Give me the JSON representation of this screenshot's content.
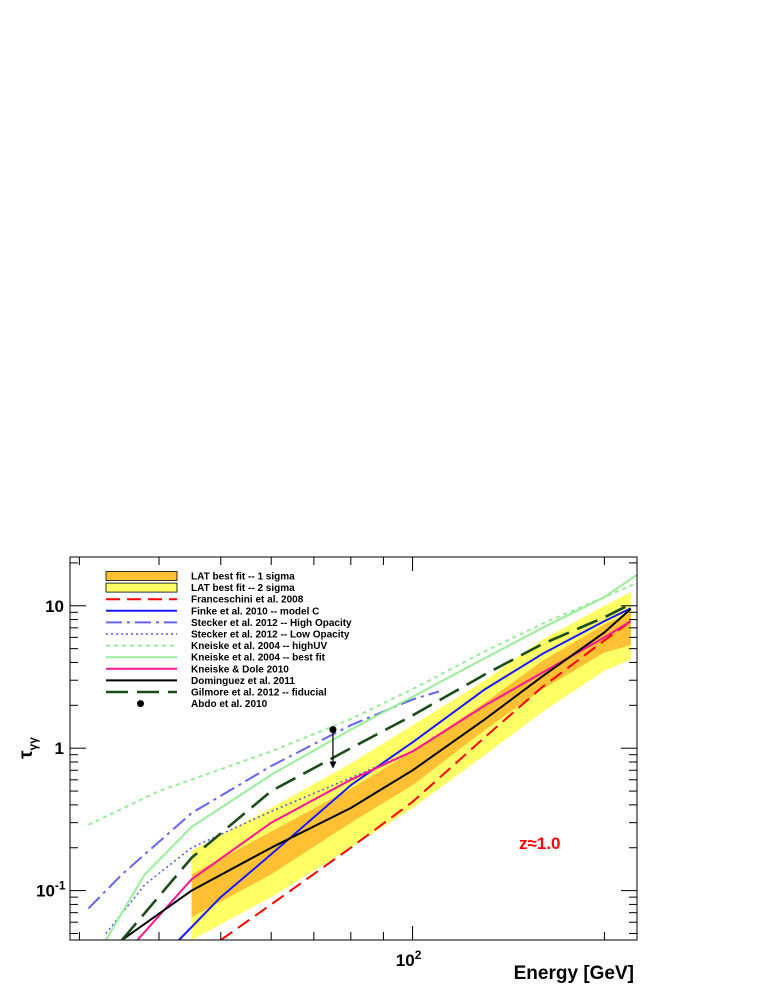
{
  "chart_data": {
    "type": "line",
    "xlabel": "Energy [GeV]",
    "ylabel": "τγγ",
    "x_scale": "log",
    "y_scale": "log",
    "xlim": [
      29,
      225
    ],
    "ylim": [
      0.045,
      22
    ],
    "x_tick_labels": [
      {
        "value": 100,
        "base": "10",
        "exp": "2"
      }
    ],
    "y_tick_labels": [
      {
        "value": 0.1,
        "label": "10",
        "exp": "-1"
      },
      {
        "value": 1,
        "label": "1",
        "exp": ""
      },
      {
        "value": 10,
        "label": "10",
        "exp": ""
      }
    ],
    "annotation": {
      "text": "z≈1.0",
      "color": "#ff0000"
    },
    "bands": [
      {
        "name": "LAT best fit -- 2 sigma",
        "color": "#ffff66",
        "x": [
          45,
          60,
          80,
          100,
          130,
          160,
          200,
          220
        ],
        "lower": [
          0.045,
          0.09,
          0.2,
          0.38,
          0.9,
          1.8,
          3.5,
          4.2
        ],
        "upper": [
          0.19,
          0.38,
          0.78,
          1.45,
          3.0,
          5.8,
          10.0,
          12.5
        ]
      },
      {
        "name": "LAT best fit -- 1 sigma",
        "color": "#ffc133",
        "x": [
          45,
          60,
          80,
          100,
          130,
          160,
          200,
          220
        ],
        "lower": [
          0.065,
          0.13,
          0.3,
          0.55,
          1.35,
          2.6,
          4.7,
          5.3
        ],
        "upper": [
          0.13,
          0.26,
          0.52,
          0.95,
          2.1,
          4.1,
          7.4,
          9.0
        ]
      }
    ],
    "series": [
      {
        "name": "Franceschini et al. 2008",
        "color": "#ff0000",
        "dash": "14,7",
        "width": 2,
        "x": [
          50,
          60,
          80,
          100,
          130,
          160,
          200,
          220
        ],
        "y": [
          0.045,
          0.08,
          0.2,
          0.42,
          1.2,
          2.7,
          5.7,
          7.8
        ]
      },
      {
        "name": "Finke et al. 2010 -- model C",
        "color": "#1a1aff",
        "dash": "",
        "width": 2,
        "x": [
          43,
          50,
          60,
          80,
          100,
          130,
          160,
          200,
          220
        ],
        "y": [
          0.045,
          0.09,
          0.18,
          0.55,
          1.1,
          2.6,
          4.6,
          7.8,
          9.6
        ]
      },
      {
        "name": "Stecker et al. 2012 -- High Opacity",
        "color": "#6666ee",
        "dash": "16,5,3,5",
        "width": 2,
        "x": [
          31,
          35,
          45,
          60,
          80,
          100,
          110
        ],
        "y": [
          0.075,
          0.13,
          0.35,
          0.75,
          1.45,
          2.2,
          2.5
        ]
      },
      {
        "name": "Stecker et al. 2012 -- Low Opacity",
        "color": "#5555dd",
        "dash": "2,3",
        "width": 1.5,
        "x": [
          33,
          38,
          45,
          60,
          80,
          100
        ],
        "y": [
          0.05,
          0.11,
          0.2,
          0.36,
          0.62,
          0.95
        ]
      },
      {
        "name": "Kneiske et al. 2004 -- highUV",
        "color": "#99ee99",
        "dash": "4,4",
        "width": 2,
        "x": [
          31,
          40,
          60,
          80,
          100,
          130,
          160,
          200,
          225
        ],
        "y": [
          0.29,
          0.5,
          0.95,
          1.6,
          2.6,
          4.8,
          7.5,
          11.5,
          14.5
        ]
      },
      {
        "name": "Kneiske et al. 2004 -- best fit",
        "color": "#99ee99",
        "dash": "",
        "width": 2,
        "x": [
          33,
          38,
          45,
          60,
          80,
          100,
          130,
          160,
          200,
          225
        ],
        "y": [
          0.045,
          0.13,
          0.28,
          0.65,
          1.35,
          2.3,
          4.3,
          7.0,
          11.5,
          16.5
        ]
      },
      {
        "name": "Kneiske & Dole 2010",
        "color": "#ff1493",
        "dash": "",
        "width": 2,
        "x": [
          37,
          45,
          60,
          80,
          100,
          130,
          160,
          200,
          220
        ],
        "y": [
          0.045,
          0.12,
          0.3,
          0.6,
          0.95,
          2.0,
          3.4,
          6.0,
          7.8
        ]
      },
      {
        "name": "Dominguez et al. 2011",
        "color": "#000000",
        "dash": "",
        "width": 2,
        "x": [
          35,
          45,
          60,
          80,
          100,
          130,
          160,
          200,
          220
        ],
        "y": [
          0.045,
          0.1,
          0.2,
          0.38,
          0.7,
          1.6,
          3.2,
          6.5,
          9.5
        ]
      },
      {
        "name": "Gilmore et al. 2012 -- fiducial",
        "color": "#1a4d1a",
        "dash": "22,9",
        "width": 2.6,
        "x": [
          35,
          45,
          60,
          80,
          100,
          130,
          160,
          200,
          222
        ],
        "y": [
          0.045,
          0.17,
          0.5,
          1.0,
          1.7,
          3.3,
          5.4,
          8.3,
          10.5
        ]
      }
    ],
    "points": [
      {
        "name": "Abdo  et al. 2010",
        "x": 75,
        "y": 1.35,
        "upper_limit_to": 0.72,
        "color": "#000000"
      }
    ],
    "legend_placement": "top-left",
    "legend": [
      {
        "label": "LAT best fit -- 1 sigma",
        "kind": "box",
        "color": "#ffc133"
      },
      {
        "label": "LAT best fit -- 2 sigma",
        "kind": "box",
        "color": "#ffff66"
      },
      {
        "label": "Franceschini et al. 2008",
        "kind": "line",
        "color": "#ff0000",
        "dash": "14,7",
        "width": 2
      },
      {
        "label": "Finke et al. 2010 -- model C",
        "kind": "line",
        "color": "#1a1aff",
        "dash": "",
        "width": 2
      },
      {
        "label": "Stecker et al. 2012 -- High Opacity",
        "kind": "line",
        "color": "#6666ee",
        "dash": "16,5,3,5",
        "width": 2
      },
      {
        "label": "Stecker et al. 2012 -- Low Opacity",
        "kind": "line",
        "color": "#5555dd",
        "dash": "2,3",
        "width": 1.5
      },
      {
        "label": "Kneiske et al. 2004 -- highUV",
        "kind": "line",
        "color": "#99ee99",
        "dash": "4,4",
        "width": 2
      },
      {
        "label": "Kneiske et al. 2004 -- best fit",
        "kind": "line",
        "color": "#99ee99",
        "dash": "",
        "width": 2
      },
      {
        "label": "Kneiske & Dole 2010",
        "kind": "line",
        "color": "#ff1493",
        "dash": "",
        "width": 2
      },
      {
        "label": "Dominguez et al. 2011",
        "kind": "line",
        "color": "#000000",
        "dash": "",
        "width": 2
      },
      {
        "label": "Gilmore et al. 2012 -- fiducial",
        "kind": "line",
        "color": "#1a4d1a",
        "dash": "22,9",
        "width": 2.6
      },
      {
        "label": "Abdo  et al. 2010",
        "kind": "dot",
        "color": "#000000"
      }
    ]
  }
}
